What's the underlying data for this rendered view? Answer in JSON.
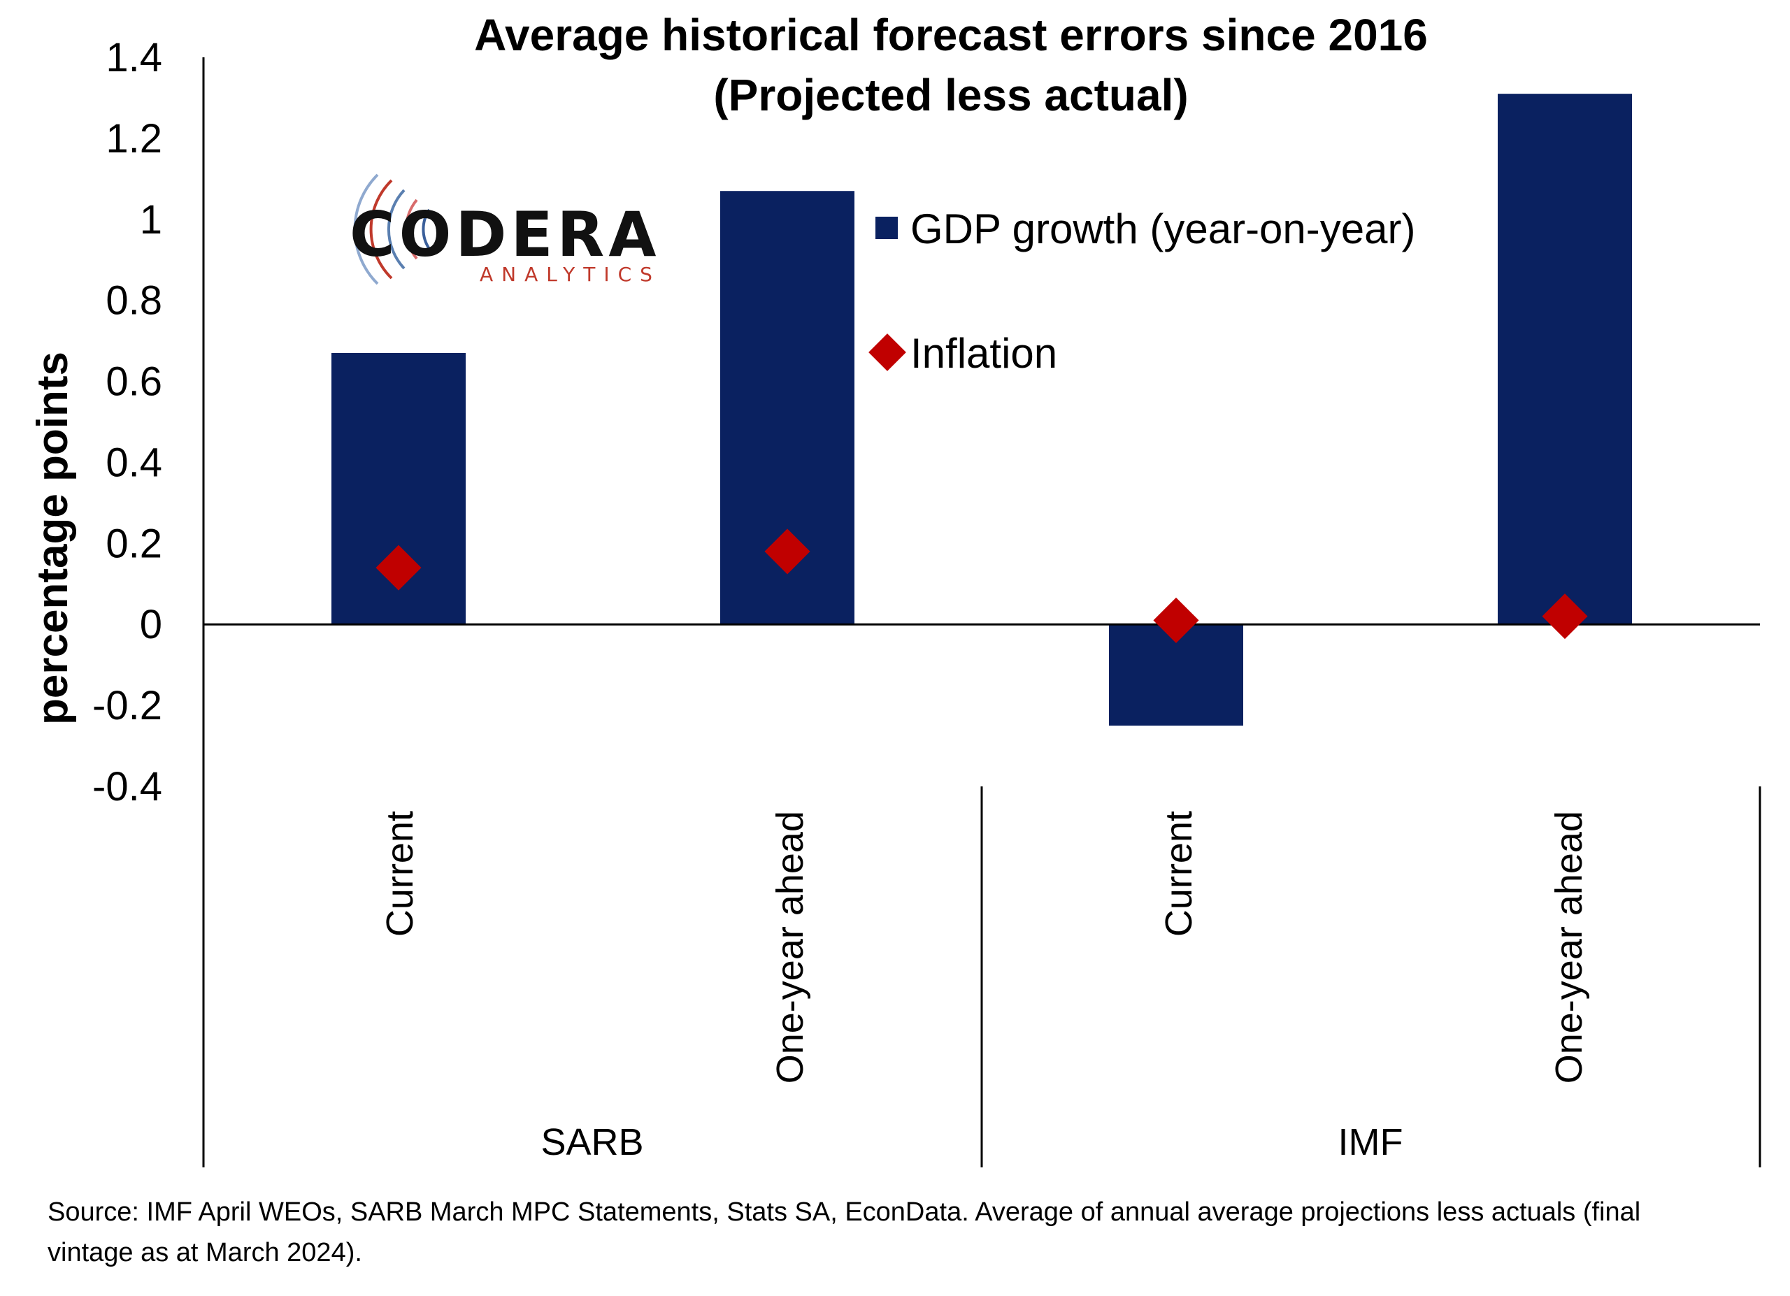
{
  "chart_data": {
    "type": "bar",
    "title": "Average historical forecast errors since 2016",
    "subtitle": "(Projected less actual)",
    "ylabel": "percentage points",
    "ylim": [
      -0.4,
      1.4
    ],
    "yticks": [
      "1.4",
      "1.2",
      "1",
      "0.8",
      "0.6",
      "0.4",
      "0.2",
      "0",
      "-0.2",
      "-0.4"
    ],
    "yticks_values": [
      1.4,
      1.2,
      1.0,
      0.8,
      0.6,
      0.4,
      0.2,
      0.0,
      -0.2,
      -0.4
    ],
    "categories": [
      "Current",
      "One-year ahead",
      "Current",
      "One-year ahead"
    ],
    "groups": [
      "SARB",
      "IMF"
    ],
    "series": [
      {
        "name": "GDP growth (year-on-year)",
        "kind": "bar",
        "color": "#0a2160",
        "values": [
          0.67,
          1.07,
          -0.25,
          1.31
        ]
      },
      {
        "name": "Inflation",
        "kind": "diamond",
        "color": "#c00000",
        "values": [
          0.14,
          0.18,
          0.01,
          0.02
        ]
      }
    ],
    "legend_position": "top-center",
    "grid": false
  },
  "logo": {
    "name": "CODERA",
    "sub": "ANALYTICS"
  },
  "source_lines": [
    "Source: IMF April WEOs, SARB March MPC Statements, Stats SA, EconData. Average of annual average projections less actuals (final",
    "vintage as at March 2024)."
  ]
}
